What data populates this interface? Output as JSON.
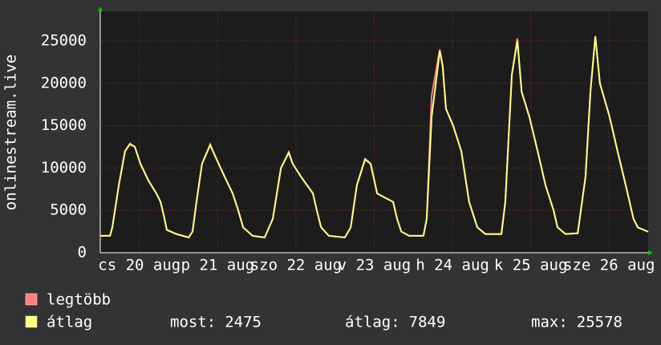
{
  "chart_data": {
    "type": "line",
    "y_label": "onlinestream.live",
    "x": [
      0,
      3,
      3.7,
      5.7,
      7.6,
      9.1,
      10.6,
      12.3,
      14.8,
      17.2,
      18.5,
      19.7,
      20.4,
      23.4,
      27.1,
      28.3,
      29.5,
      31.2,
      33.7,
      35.7,
      38.1,
      40.6,
      42.3,
      43.8,
      46.7,
      50.4,
      52.9,
      55.4,
      57.8,
      59,
      61.5,
      65.2,
      66.4,
      67.7,
      70.1,
      75,
      76.8,
      78.7,
      81.2,
      82.9,
      84.9,
      87.3,
      89.8,
      91,
      92.3,
      94.7,
      99.1,
      100.1,
      101.6,
      104.1,
      105,
      106,
      108.2,
      110.7,
      113.1,
      115.6,
      118.1,
      123,
      124.2,
      126.2,
      127.9,
      129.2,
      131.6,
      134.1,
      136.5,
      139,
      140.2,
      142.7,
      146.4,
      148.8,
      150.3,
      151.8,
      153.2,
      156.2,
      158.6,
      161.1,
      163.5,
      164.8,
      168
    ],
    "series": [
      {
        "name": "legtöbb",
        "color": "#ff7f7f",
        "values": [
          2000,
          2000,
          3000,
          8000,
          12000,
          12900,
          12500,
          10500,
          8500,
          7000,
          6000,
          4000,
          2700,
          2200,
          1800,
          2500,
          6000,
          10500,
          12800,
          11000,
          9000,
          7000,
          5000,
          3000,
          2000,
          1800,
          4000,
          10000,
          11900,
          10500,
          9000,
          7000,
          5000,
          3000,
          2000,
          1800,
          3000,
          8000,
          11100,
          10500,
          7000,
          6500,
          6000,
          4000,
          2500,
          2000,
          2000,
          4000,
          18500,
          24000,
          22000,
          17000,
          15000,
          12000,
          6000,
          3000,
          2200,
          2200,
          6000,
          21000,
          25300,
          19000,
          16000,
          12000,
          8000,
          5000,
          3000,
          2200,
          2300,
          9000,
          19000,
          25578,
          20000,
          16000,
          12000,
          8000,
          4000,
          3000,
          2475
        ]
      },
      {
        "name": "átlag",
        "color": "#ffff80",
        "values": [
          2000,
          2000,
          3000,
          8000,
          12000,
          12800,
          12500,
          10500,
          8500,
          7000,
          6000,
          4000,
          2700,
          2200,
          1800,
          2500,
          6000,
          10500,
          12700,
          11000,
          9000,
          7000,
          5000,
          3000,
          2000,
          1800,
          4000,
          10000,
          11800,
          10500,
          9000,
          7000,
          5000,
          3000,
          2000,
          1800,
          3000,
          8000,
          11000,
          10500,
          7000,
          6500,
          6000,
          4000,
          2500,
          2000,
          2000,
          4000,
          16000,
          23800,
          22000,
          17000,
          15000,
          12000,
          6000,
          3000,
          2200,
          2200,
          6000,
          21000,
          25000,
          19000,
          16000,
          12000,
          8000,
          5000,
          3000,
          2200,
          2300,
          9000,
          19000,
          25500,
          20000,
          16000,
          12000,
          8000,
          4000,
          3000,
          2475
        ]
      }
    ],
    "xlim": [
      0,
      168
    ],
    "xticks": [
      {
        "value": 12,
        "label": "cs 20 aug"
      },
      {
        "value": 36,
        "label": "p 21 aug"
      },
      {
        "value": 60,
        "label": "szo 22 aug"
      },
      {
        "value": 84,
        "label": "v 23 aug"
      },
      {
        "value": 108,
        "label": "h 24 aug"
      },
      {
        "value": 132,
        "label": "k 25 aug"
      },
      {
        "value": 156,
        "label": "sze 26 aug"
      }
    ],
    "ylim": [
      0,
      28500
    ],
    "yticks": [
      0,
      5000,
      10000,
      15000,
      20000,
      25000
    ],
    "grid": true,
    "stats": [
      {
        "label": "most:",
        "value": 2475
      },
      {
        "label": "átlag:",
        "value": 7849
      },
      {
        "label": "max:",
        "value": 25578
      }
    ]
  }
}
